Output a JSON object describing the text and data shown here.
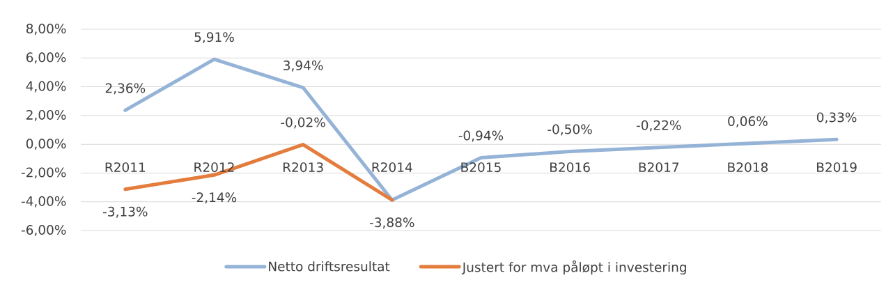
{
  "chart_data": {
    "type": "line",
    "categories": [
      "R2011",
      "R2012",
      "R2013",
      "R2014",
      "B2015",
      "B2016",
      "B2017",
      "B2018",
      "B2019"
    ],
    "series": [
      {
        "name": "Netto driftsresultat",
        "color": "#95b3d7",
        "values": [
          2.36,
          5.91,
          3.94,
          -3.88,
          -0.94,
          -0.5,
          -0.22,
          0.06,
          0.33
        ],
        "value_labels": [
          "2,36%",
          "5,91%",
          "3,94%",
          "-3,88%",
          "-0,94%",
          "-0,50%",
          "-0,22%",
          "0,06%",
          "0,33%"
        ]
      },
      {
        "name": "Justert for mva påløpt i investering",
        "color": "#e37c3c",
        "values": [
          -3.13,
          -2.14,
          -0.02,
          -3.88,
          null,
          null,
          null,
          null,
          null
        ],
        "value_labels": [
          "-3,13%",
          "-2,14%",
          "-0,02%",
          null,
          null,
          null,
          null,
          null,
          null
        ]
      }
    ],
    "ylim": [
      -6,
      8
    ],
    "yticks": [
      {
        "value": -6,
        "label": "-6,00%"
      },
      {
        "value": -4,
        "label": "-4,00%"
      },
      {
        "value": -2,
        "label": "-2,00%"
      },
      {
        "value": 0,
        "label": "0,00%"
      },
      {
        "value": 2,
        "label": "2,00%"
      },
      {
        "value": 4,
        "label": "4,00%"
      },
      {
        "value": 6,
        "label": "6,00%"
      },
      {
        "value": 8,
        "label": "8,00%"
      }
    ],
    "grid": "y",
    "legend": "bottom",
    "marker": "none",
    "line_style": "solid"
  }
}
